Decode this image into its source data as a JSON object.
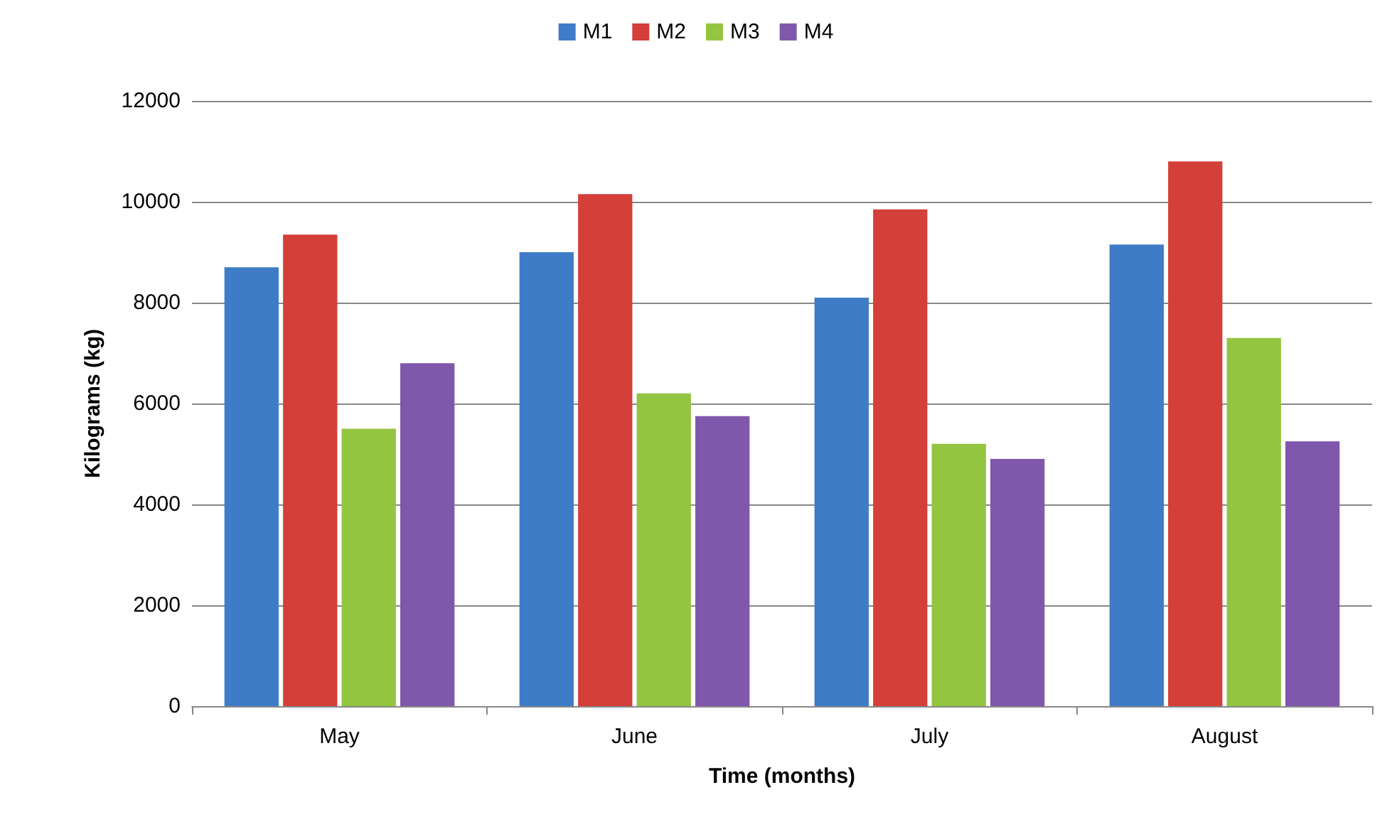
{
  "chart_data": {
    "type": "bar",
    "xlabel": "Time (months)",
    "ylabel": "Kilograms (kg)",
    "categories": [
      "May",
      "June",
      "July",
      "August"
    ],
    "series": [
      {
        "name": "M1",
        "color": "#3f7cc8",
        "values": [
          8700,
          9000,
          8100,
          9150
        ]
      },
      {
        "name": "M2",
        "color": "#d43f3a",
        "values": [
          9350,
          10150,
          9850,
          10800
        ]
      },
      {
        "name": "M3",
        "color": "#94c541",
        "values": [
          5500,
          6200,
          5200,
          7300
        ]
      },
      {
        "name": "M4",
        "color": "#8058ab",
        "values": [
          6800,
          5750,
          4900,
          5250
        ]
      }
    ],
    "ylim": [
      0,
      12000
    ],
    "yticks": [
      0,
      2000,
      4000,
      6000,
      8000,
      10000,
      12000
    ],
    "grid": "y",
    "legend": "top"
  }
}
